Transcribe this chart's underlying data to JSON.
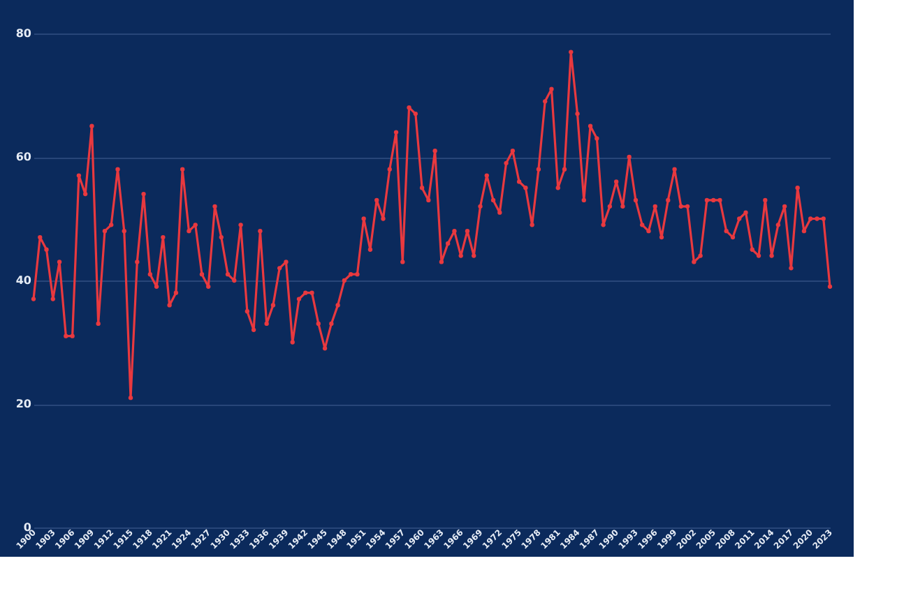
{
  "chart_data": {
    "type": "line",
    "x": [
      1900,
      1901,
      1902,
      1903,
      1904,
      1905,
      1906,
      1907,
      1908,
      1909,
      1910,
      1911,
      1912,
      1913,
      1914,
      1915,
      1916,
      1917,
      1918,
      1919,
      1920,
      1921,
      1922,
      1923,
      1924,
      1925,
      1926,
      1927,
      1928,
      1929,
      1930,
      1931,
      1932,
      1933,
      1934,
      1935,
      1936,
      1937,
      1938,
      1939,
      1940,
      1941,
      1942,
      1943,
      1944,
      1945,
      1946,
      1947,
      1948,
      1949,
      1950,
      1951,
      1952,
      1953,
      1954,
      1955,
      1956,
      1957,
      1958,
      1959,
      1960,
      1961,
      1962,
      1963,
      1964,
      1965,
      1966,
      1967,
      1968,
      1969,
      1970,
      1971,
      1972,
      1973,
      1974,
      1975,
      1976,
      1977,
      1978,
      1979,
      1980,
      1981,
      1982,
      1983,
      1984,
      1985,
      1986,
      1987,
      1988,
      1989,
      1990,
      1991,
      1992,
      1993,
      1994,
      1995,
      1996,
      1997,
      1998,
      1999,
      2000,
      2001,
      2002,
      2003,
      2004,
      2005,
      2006,
      2007,
      2008,
      2009,
      2010,
      2011,
      2012,
      2013,
      2014,
      2015,
      2016,
      2017,
      2018,
      2019,
      2020,
      2021,
      2022,
      2023
    ],
    "series": [
      {
        "color": "#e8393f",
        "values": [
          37,
          47,
          45,
          37,
          43,
          31,
          31,
          57,
          54,
          65,
          33,
          48,
          49,
          58,
          48,
          21,
          43,
          54,
          41,
          39,
          47,
          36,
          38,
          58,
          48,
          49,
          41,
          39,
          52,
          47,
          41,
          40,
          49,
          35,
          32,
          48,
          33,
          36,
          42,
          43,
          30,
          37,
          38,
          38,
          33,
          29,
          33,
          36,
          40,
          41,
          41,
          50,
          45,
          53,
          50,
          58,
          64,
          43,
          68,
          67,
          55,
          53,
          61,
          43,
          46,
          48,
          44,
          48,
          44,
          52,
          57,
          53,
          51,
          59,
          61,
          56,
          55,
          49,
          58,
          69,
          71,
          55,
          58,
          77,
          67,
          53,
          65,
          63,
          49,
          52,
          56,
          52,
          60,
          53,
          49,
          48,
          52,
          47,
          53,
          58,
          52,
          52,
          43,
          44,
          53,
          53,
          53,
          48,
          47,
          50,
          51,
          45,
          44,
          53,
          44,
          49,
          52,
          42,
          55,
          48,
          50,
          50,
          50,
          39
        ]
      }
    ],
    "xlim": [
      1900,
      2023
    ],
    "xticks": [
      1900,
      1903,
      1906,
      1909,
      1912,
      1915,
      1918,
      1921,
      1924,
      1927,
      1930,
      1933,
      1936,
      1939,
      1942,
      1945,
      1948,
      1951,
      1954,
      1957,
      1960,
      1963,
      1966,
      1969,
      1972,
      1975,
      1978,
      1981,
      1984,
      1987,
      1990,
      1993,
      1996,
      1999,
      2002,
      2005,
      2008,
      2011,
      2014,
      2017,
      2020,
      2023
    ],
    "ylim": [
      0,
      80
    ],
    "yticks": [
      0,
      20,
      40,
      60,
      80
    ],
    "grid": "y",
    "marker": "circle",
    "line_style": "solid"
  }
}
